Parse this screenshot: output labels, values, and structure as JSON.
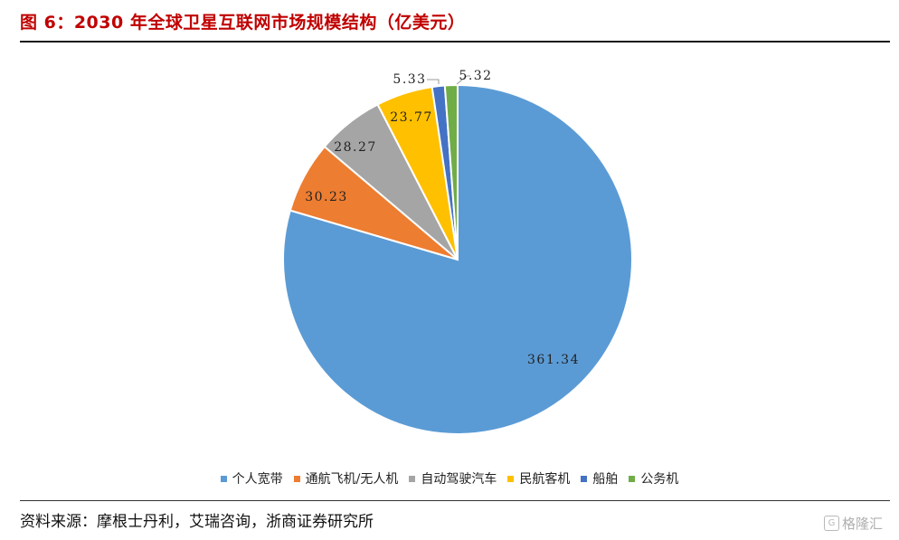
{
  "figure": {
    "title": "图 6：2030 年全球卫星互联网市场规模结构（亿美元）",
    "source": "资料来源：摩根士丹利，艾瑞咨询，浙商证券研究所",
    "watermark": "格隆汇",
    "watermark_icon": "G-logo-icon"
  },
  "chart_data": {
    "type": "pie",
    "title": "",
    "legend_position": "bottom",
    "start_angle_deg": 0,
    "direction": "clockwise",
    "slices": [
      {
        "label": "个人宽带",
        "value": 361.34,
        "value_label": "361.34",
        "color": "#5b9bd5"
      },
      {
        "label": "通航飞机/无人机",
        "value": 30.23,
        "value_label": "30.23",
        "color": "#ed7d31"
      },
      {
        "label": "自动驾驶汽车",
        "value": 28.27,
        "value_label": "28.27",
        "color": "#a5a5a5"
      },
      {
        "label": "民航客机",
        "value": 23.77,
        "value_label": "23.77",
        "color": "#ffc000"
      },
      {
        "label": "船舶",
        "value": 5.33,
        "value_label": "5.33",
        "color": "#4472c4"
      },
      {
        "label": "公务机",
        "value": 5.32,
        "value_label": "5.32",
        "color": "#70ad47"
      }
    ]
  }
}
